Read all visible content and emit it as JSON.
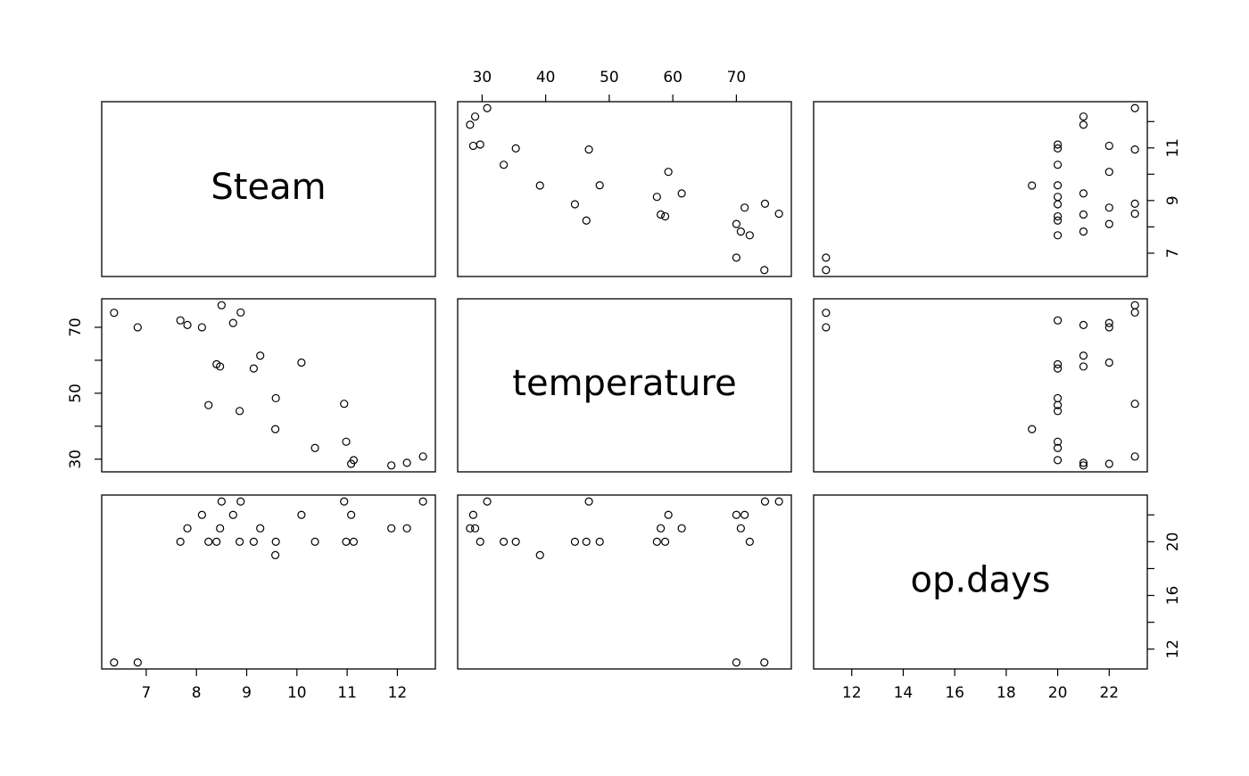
{
  "chart_data": {
    "type": "scatter-matrix",
    "variables": [
      {
        "name": "Steam",
        "values": [
          10.98,
          11.13,
          12.51,
          8.4,
          9.27,
          8.73,
          6.36,
          8.5,
          7.82,
          9.14,
          8.24,
          12.19,
          11.88,
          9.57,
          10.94,
          9.58,
          10.09,
          8.11,
          6.83,
          8.88,
          7.68,
          8.47,
          8.86,
          10.36,
          11.08
        ],
        "lim": [
          6.114,
          12.756
        ],
        "xticks": [
          7,
          8,
          9,
          10,
          11,
          12
        ],
        "yticks": [
          7,
          {
            "value": 8,
            "label": null
          },
          9,
          {
            "value": 10,
            "label": null
          },
          11,
          {
            "value": 12,
            "label": null
          }
        ]
      },
      {
        "name": "temperature",
        "values": [
          35.3,
          29.7,
          30.8,
          58.8,
          61.4,
          71.3,
          74.4,
          76.7,
          70.7,
          57.5,
          46.4,
          28.9,
          28.1,
          39.1,
          46.8,
          48.5,
          59.3,
          70.0,
          70.0,
          74.5,
          72.1,
          58.1,
          44.6,
          33.4,
          28.6
        ],
        "lim": [
          26.156,
          78.644
        ],
        "xticks": [
          30,
          40,
          50,
          60,
          70
        ],
        "yticks": [
          30,
          {
            "value": 40,
            "label": null
          },
          50,
          {
            "value": 60,
            "label": null
          },
          70
        ]
      },
      {
        "name": "op.days",
        "values": [
          20,
          20,
          23,
          20,
          21,
          22,
          11,
          23,
          21,
          20,
          20,
          21,
          21,
          19,
          23,
          20,
          22,
          22,
          11,
          23,
          20,
          21,
          20,
          20,
          22
        ],
        "lim": [
          10.52,
          23.48
        ],
        "xticks": [
          12,
          14,
          16,
          18,
          20,
          22
        ],
        "yticks": [
          12,
          {
            "value": 14,
            "label": null
          },
          16,
          {
            "value": 18,
            "label": null
          },
          20,
          {
            "value": 22,
            "label": null
          }
        ]
      }
    ]
  }
}
